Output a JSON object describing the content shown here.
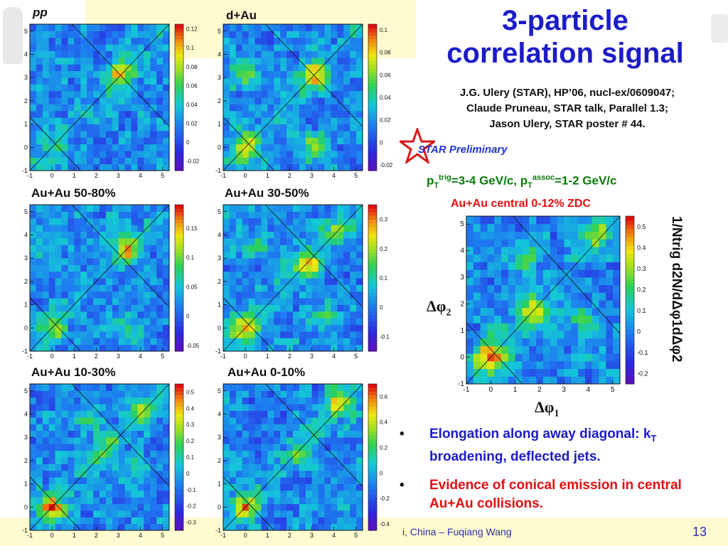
{
  "slide": {
    "title_line1": "3-particle",
    "title_line2": "correlation signal",
    "refs": [
      "J.G. Ulery (STAR), HP’06, nucl-ex/0609047;",
      "Claude Pruneau, STAR talk, Parallel 1.3;",
      "Jason Ulery, STAR poster # 44."
    ],
    "preliminary": "STAR Preliminary",
    "pt_trig_prefix": "p",
    "pt_trig_sub": "T",
    "pt_trig_sup": "trig",
    "pt_trig_range": "=3-4 GeV/c, p",
    "pt_assoc_sub": "T",
    "pt_assoc_sup": "assoc",
    "pt_assoc_range": "=1-2 GeV/c",
    "central_label": "Au+Au central 0-12% ZDC",
    "bullets": [
      "Elongation along away diagonal: k<sub>T</sub> broadening, deflected jets.",
      "Evidence of conical emission in central Au+Au collisions."
    ],
    "bullet1_a": "Elongation along away diagonal: k",
    "bullet1_sub": "T",
    "bullet1_b": " broadening, deflected jets.",
    "bullet2": "Evidence of conical emission in central Au+Au collisions.",
    "footer_text": "i, China – Fuqiang Wang",
    "page_number": "13",
    "big_xlabel": "Δφ",
    "big_xlabel_sub": "1",
    "big_ylabel": "Δφ",
    "big_ylabel_sub": "2",
    "zaxis_label": "1/N<sub>trig</sub> d<sup>2</sup>N/dΔφ<sub>1</sub>dΔφ<sub>2</sub>",
    "zaxis_text": "1/Ntrig d2N/dΔφ1dΔφ2"
  },
  "chart_data": [
    {
      "type": "heatmap",
      "label": "pp",
      "label_italic": true,
      "x_ticks": [
        "-1",
        "0",
        "1",
        "2",
        "3",
        "4",
        "5"
      ],
      "y_ticks": [
        "-1",
        "0",
        "1",
        "2",
        "3",
        "4",
        "5"
      ],
      "z_ticks": [
        "0.12",
        "0.1",
        "0.08",
        "0.06",
        "0.04",
        "0.02",
        "0",
        "-0.02"
      ],
      "zlim": [
        -0.03,
        0.125
      ],
      "peaks": [
        {
          "x": 3.1,
          "y": 3.1,
          "amp": 0.8
        },
        {
          "x": 0,
          "y": 0,
          "amp": 0.25
        }
      ]
    },
    {
      "type": "heatmap",
      "label": "d+Au",
      "x_ticks": [
        "-1",
        "0",
        "1",
        "2",
        "3",
        "4",
        "5"
      ],
      "y_ticks": [
        "-1",
        "0",
        "1",
        "2",
        "3",
        "4",
        "5"
      ],
      "z_ticks": [
        "0.1",
        "0.08",
        "0.06",
        "0.04",
        "0.02",
        "0",
        "-0.02"
      ],
      "zlim": [
        -0.025,
        0.105
      ],
      "peaks": [
        {
          "x": 3.1,
          "y": 3.1,
          "amp": 0.9
        },
        {
          "x": 0,
          "y": 0,
          "amp": 0.9
        },
        {
          "x": 0,
          "y": 3.2,
          "amp": 0.6
        },
        {
          "x": 3.2,
          "y": 0,
          "amp": 0.6
        }
      ]
    },
    {
      "type": "heatmap",
      "label": "Au+Au 50-80%",
      "x_ticks": [
        "-1",
        "0",
        "1",
        "2",
        "3",
        "4",
        "5"
      ],
      "y_ticks": [
        "-1",
        "0",
        "1",
        "2",
        "3",
        "4",
        "5"
      ],
      "z_ticks": [
        "0.15",
        "0.1",
        "0.05",
        "0",
        "-0.05"
      ],
      "zlim": [
        -0.06,
        0.19
      ],
      "peaks": [
        {
          "x": 3.4,
          "y": 3.4,
          "amp": 0.8
        },
        {
          "x": 0,
          "y": 0,
          "amp": 0.5
        },
        {
          "x": 0,
          "y": 3.5,
          "amp": 0.4
        },
        {
          "x": 3.5,
          "y": 0,
          "amp": 0.4
        }
      ]
    },
    {
      "type": "heatmap",
      "label": "Au+Au 30-50%",
      "x_ticks": [
        "-1",
        "0",
        "1",
        "2",
        "3",
        "4",
        "5"
      ],
      "y_ticks": [
        "-1",
        "0",
        "1",
        "2",
        "3",
        "4",
        "5"
      ],
      "z_ticks": [
        "0.3",
        "0.2",
        "0.1",
        "0",
        "-0.1"
      ],
      "zlim": [
        -0.15,
        0.35
      ],
      "peaks": [
        {
          "x": 2.8,
          "y": 2.8,
          "amp": 0.8
        },
        {
          "x": 0,
          "y": 0,
          "amp": 0.8
        },
        {
          "x": 4,
          "y": 4.2,
          "amp": 0.5
        },
        {
          "x": 0.5,
          "y": 3.5,
          "amp": 0.4
        },
        {
          "x": 3.5,
          "y": 0.5,
          "amp": 0.4
        }
      ]
    },
    {
      "type": "heatmap",
      "label": "Au+Au 10-30%",
      "x_ticks": [
        "-1",
        "0",
        "1",
        "2",
        "3",
        "4",
        "5"
      ],
      "y_ticks": [
        "-1",
        "0",
        "1",
        "2",
        "3",
        "4",
        "5"
      ],
      "z_ticks": [
        "0.5",
        "0.4",
        "0.3",
        "0.2",
        "0.1",
        "0",
        "-0.1",
        "-0.2",
        "-0.3"
      ],
      "zlim": [
        -0.35,
        0.55
      ],
      "peaks": [
        {
          "x": 0,
          "y": 0,
          "amp": 0.9
        },
        {
          "x": 2.5,
          "y": 2.5,
          "amp": 0.5
        },
        {
          "x": 4,
          "y": 4,
          "amp": 0.5
        },
        {
          "x": 1.5,
          "y": 3.8,
          "amp": 0.4
        },
        {
          "x": 3.8,
          "y": 1.5,
          "amp": 0.4
        }
      ]
    },
    {
      "type": "heatmap",
      "label": "Au+Au 0-10%",
      "x_ticks": [
        "-1",
        "0",
        "1",
        "2",
        "3",
        "4",
        "5"
      ],
      "y_ticks": [
        "-1",
        "0",
        "1",
        "2",
        "3",
        "4",
        "5"
      ],
      "z_ticks": [
        "0.6",
        "0.4",
        "0.2",
        "0",
        "-0.2",
        "-0.4"
      ],
      "zlim": [
        -0.45,
        0.7
      ],
      "peaks": [
        {
          "x": 0,
          "y": 0,
          "amp": 0.8
        },
        {
          "x": 4.3,
          "y": 4.6,
          "amp": 0.8
        },
        {
          "x": 2.5,
          "y": 2.5,
          "amp": 0.5
        }
      ]
    },
    {
      "type": "heatmap",
      "label": "Au+Au central 0-12% ZDC",
      "x_ticks": [
        "-1",
        "0",
        "1",
        "2",
        "3",
        "4",
        "5"
      ],
      "y_ticks": [
        "-1",
        "0",
        "1",
        "2",
        "3",
        "4",
        "5"
      ],
      "z_ticks": [
        "0.5",
        "0.4",
        "0.3",
        "0.2",
        "0.1",
        "0",
        "-0.1",
        "-0.2"
      ],
      "zlim": [
        -0.25,
        0.55
      ],
      "xlabel": "Δφ1",
      "ylabel": "Δφ2",
      "peaks": [
        {
          "x": 0,
          "y": 0,
          "amp": 1.0
        },
        {
          "x": 1.7,
          "y": 1.7,
          "amp": 0.6
        },
        {
          "x": 4.2,
          "y": 4.6,
          "amp": 0.55
        },
        {
          "x": 1.3,
          "y": 3.8,
          "amp": 0.4
        },
        {
          "x": 3.8,
          "y": 1.3,
          "amp": 0.4
        }
      ]
    }
  ]
}
